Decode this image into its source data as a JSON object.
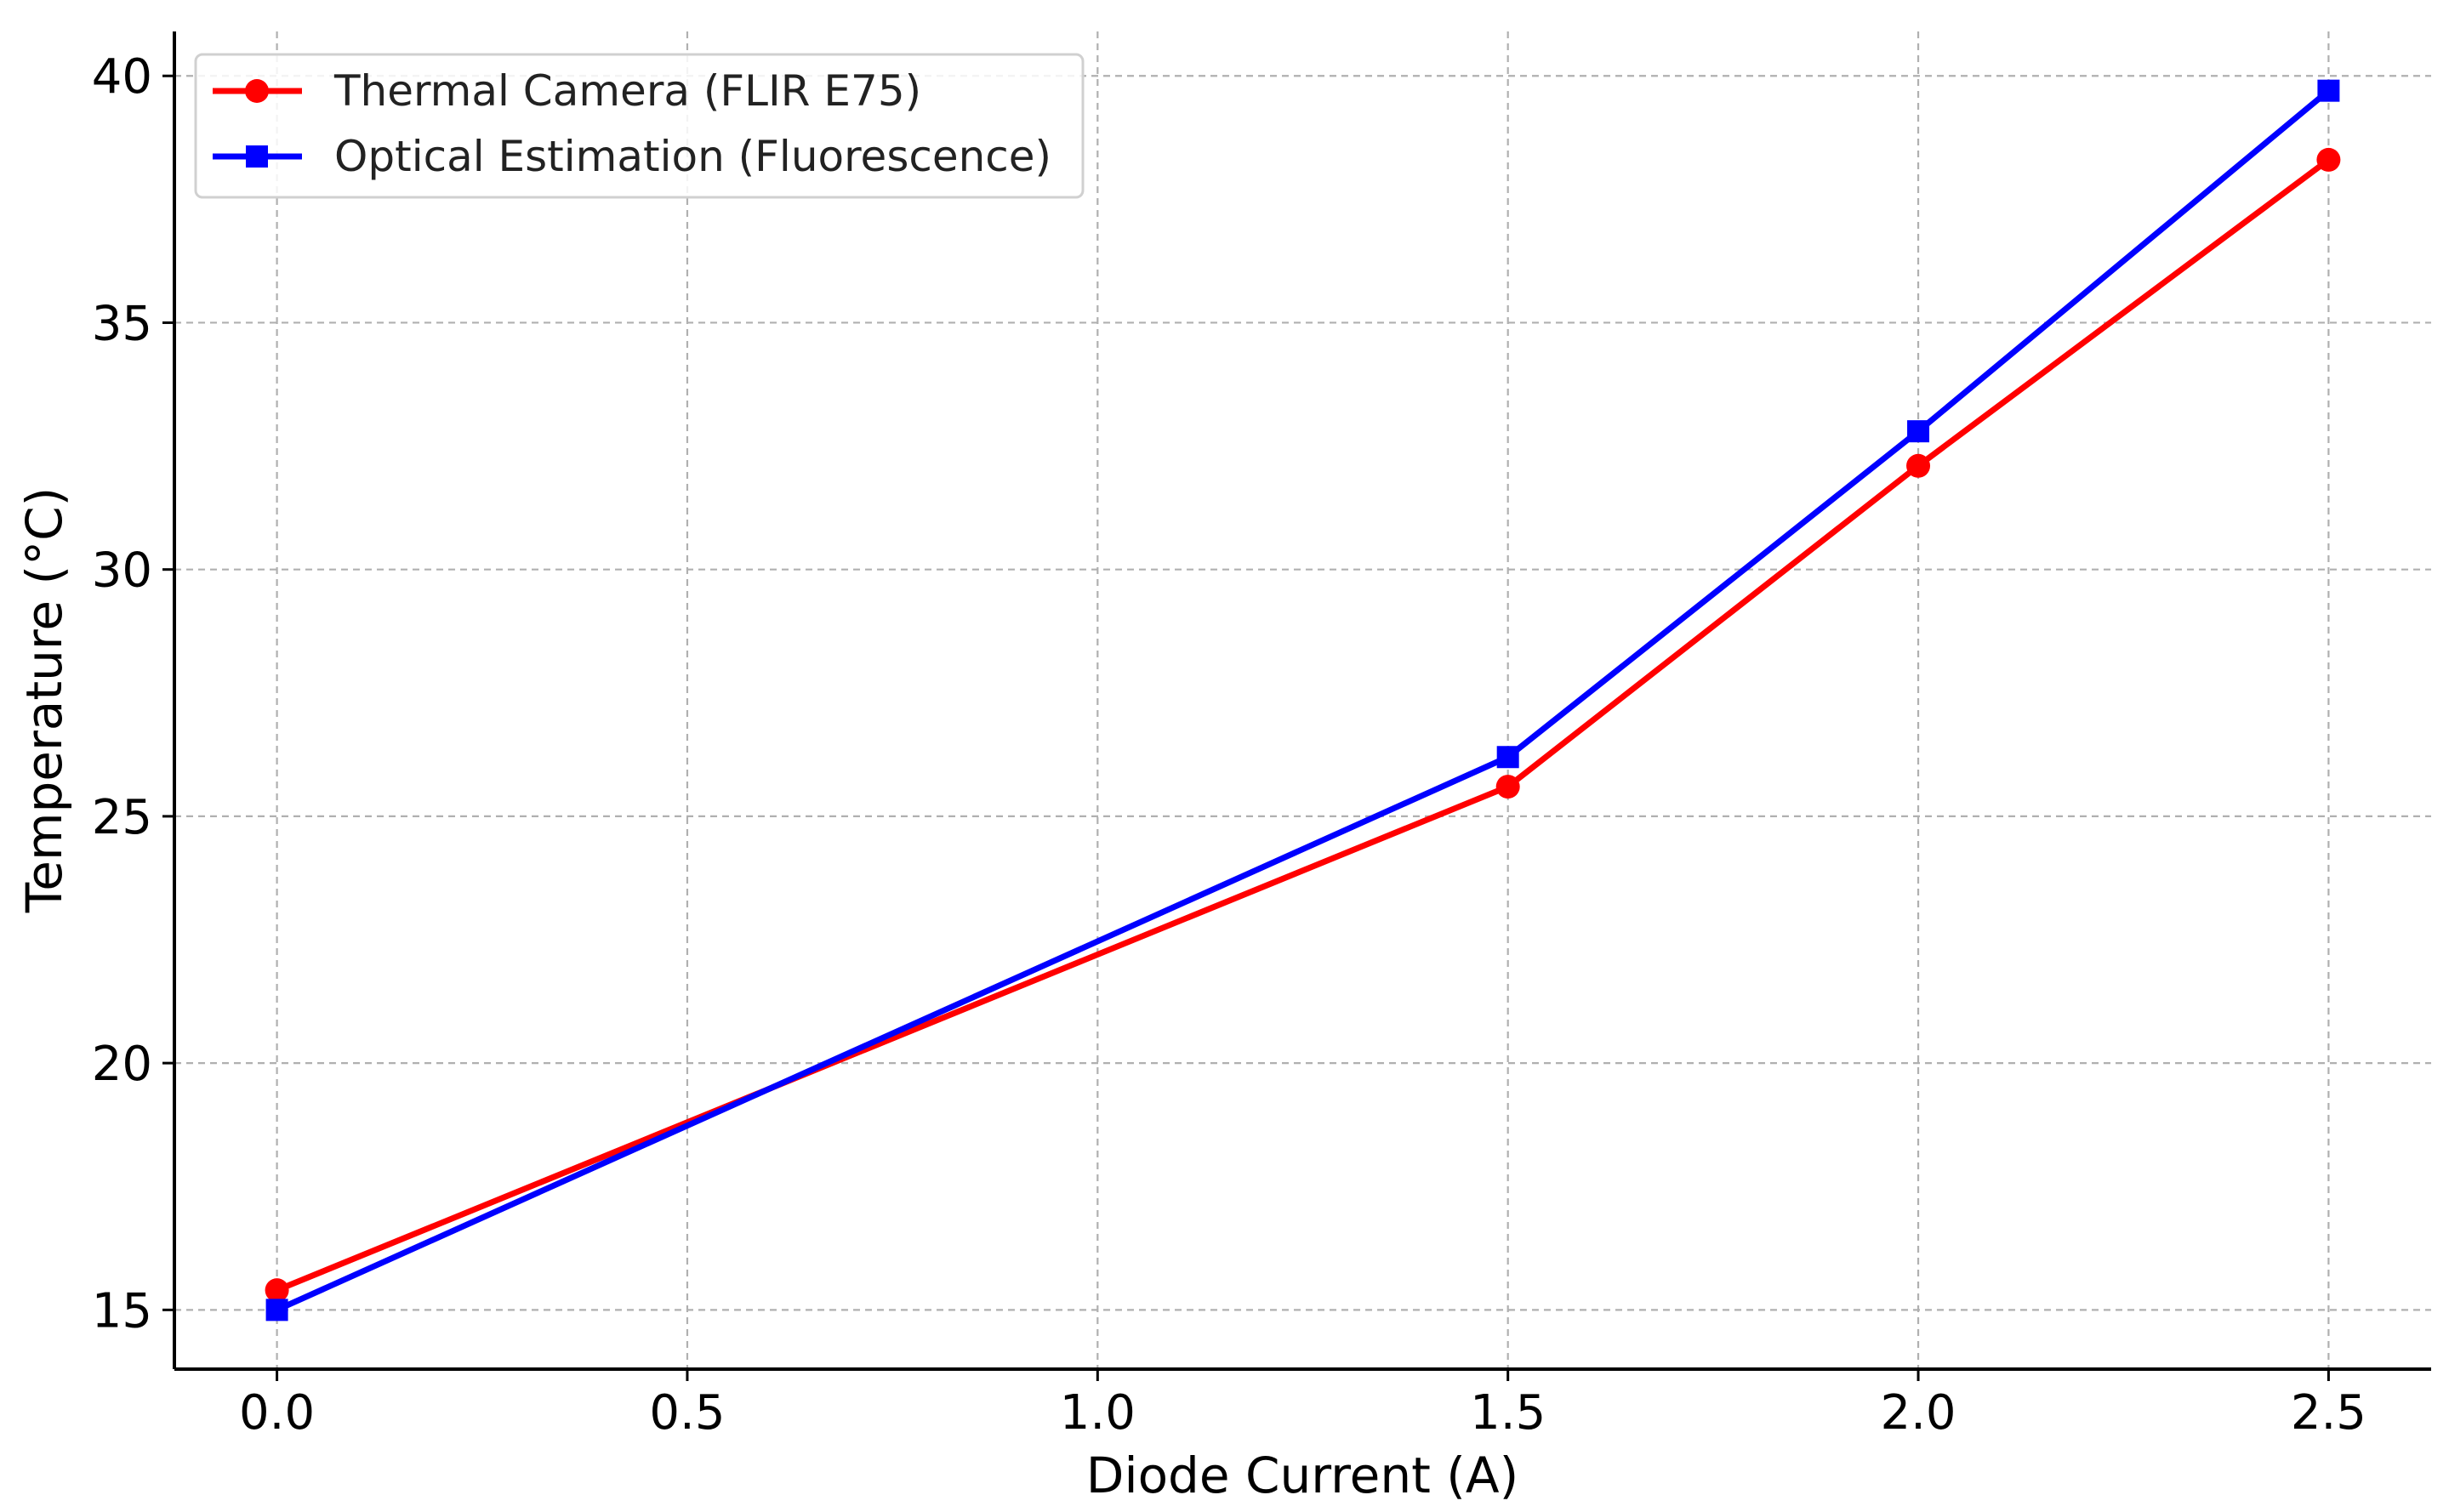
{
  "chart_data": {
    "type": "line",
    "title": "",
    "xlabel": "Diode Current (A)",
    "ylabel": "Temperature (°C)",
    "xlim": [
      -0.125,
      2.625
    ],
    "ylim": [
      13.8,
      40.9
    ],
    "xticks": [
      0.0,
      0.5,
      1.0,
      1.5,
      2.0,
      2.5
    ],
    "xtick_labels": [
      "0.0",
      "0.5",
      "1.0",
      "1.5",
      "2.0",
      "2.5"
    ],
    "yticks": [
      15,
      20,
      25,
      30,
      35,
      40
    ],
    "ytick_labels": [
      "15",
      "20",
      "25",
      "30",
      "35",
      "40"
    ],
    "grid": true,
    "legend_position": "top-left",
    "series": [
      {
        "name": "Thermal Camera (FLIR E75)",
        "color": "#ff0000",
        "marker": "circle",
        "x": [
          0.0,
          1.5,
          2.0,
          2.5
        ],
        "y": [
          15.4,
          25.6,
          32.1,
          38.3
        ]
      },
      {
        "name": "Optical Estimation (Fluorescence)",
        "color": "#0000ff",
        "marker": "square",
        "x": [
          0.0,
          1.5,
          2.0,
          2.5
        ],
        "y": [
          15.0,
          26.2,
          32.8,
          39.7
        ]
      }
    ]
  }
}
